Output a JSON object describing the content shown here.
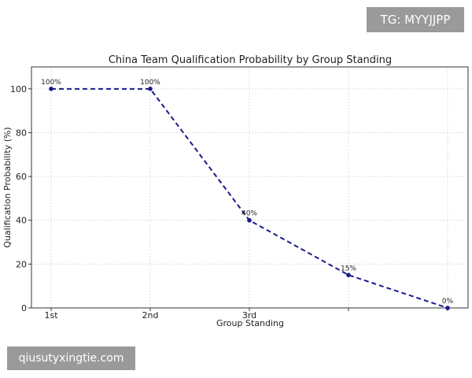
{
  "watermarks": {
    "top_right": "TG: MYYJJPP",
    "bottom_left": "qiusutyxingtie.com"
  },
  "colors": {
    "series": "#1a1a8c",
    "grid": "#dddddd",
    "axis": "#333333"
  },
  "chart_data": {
    "type": "line",
    "title": "China Team Qualification Probability by Group Standing",
    "xlabel": "Group Standing",
    "ylabel": "Qualification Probability (%)",
    "categories": [
      "1st",
      "2nd",
      "3rd",
      "",
      ""
    ],
    "values": [
      100,
      100,
      40,
      15,
      0
    ],
    "data_labels": [
      "100%",
      "100%",
      "40%",
      "15%",
      "0%"
    ],
    "yticks": [
      0,
      20,
      40,
      60,
      80,
      100
    ],
    "ylim": [
      0,
      110
    ],
    "grid": true,
    "line_style": "dashed",
    "marker": "circle"
  }
}
